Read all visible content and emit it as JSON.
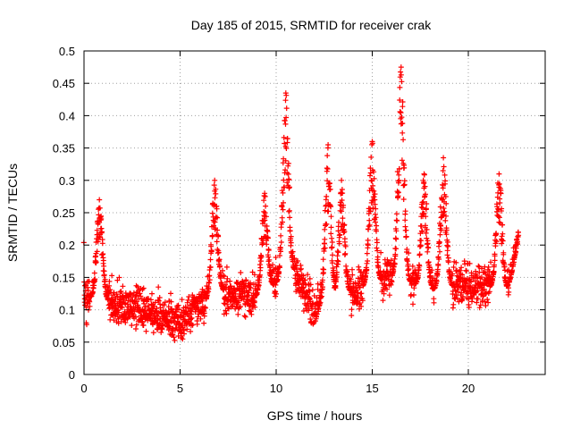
{
  "chart_data": {
    "type": "scatter",
    "title": "Day 185 of 2015, SRMTID for receiver crak",
    "xlabel": "GPS time / hours",
    "ylabel": "SRMTID / TECUs",
    "xlim": [
      0,
      24
    ],
    "ylim": [
      0,
      0.5
    ],
    "xticks": [
      0,
      5,
      10,
      15,
      20
    ],
    "xtick_labels": [
      "0",
      "5",
      "10",
      "15",
      "20"
    ],
    "yticks": [
      0,
      0.05,
      0.1,
      0.15,
      0.2,
      0.25,
      0.3,
      0.35,
      0.4,
      0.45,
      0.5
    ],
    "ytick_labels": [
      "0",
      "0.05",
      "0.1",
      "0.15",
      "0.2",
      "0.25",
      "0.3",
      "0.35",
      "0.4",
      "0.45",
      "0.5"
    ],
    "grid": true,
    "marker": "+",
    "color": "#ff0000",
    "x_range_of_data": [
      0,
      22.6
    ],
    "baseline_profile": [
      {
        "hour": 0,
        "typical": 0.12
      },
      {
        "hour": 2,
        "typical": 0.11
      },
      {
        "hour": 4,
        "typical": 0.09
      },
      {
        "hour": 5,
        "typical": 0.08
      },
      {
        "hour": 7,
        "typical": 0.13
      },
      {
        "hour": 9,
        "typical": 0.12
      },
      {
        "hour": 11,
        "typical": 0.16
      },
      {
        "hour": 12,
        "typical": 0.1
      },
      {
        "hour": 14,
        "typical": 0.13
      },
      {
        "hour": 16,
        "typical": 0.15
      },
      {
        "hour": 18,
        "typical": 0.13
      },
      {
        "hour": 20,
        "typical": 0.14
      },
      {
        "hour": 22,
        "typical": 0.13
      },
      {
        "hour": 22.6,
        "typical": 0.19
      }
    ],
    "peaks": [
      {
        "hour": 0.8,
        "value": 0.27
      },
      {
        "hour": 6.8,
        "value": 0.3
      },
      {
        "hour": 9.4,
        "value": 0.28
      },
      {
        "hour": 10.5,
        "value": 0.435
      },
      {
        "hour": 12.7,
        "value": 0.355
      },
      {
        "hour": 13.4,
        "value": 0.3
      },
      {
        "hour": 15.0,
        "value": 0.36
      },
      {
        "hour": 16.5,
        "value": 0.475
      },
      {
        "hour": 17.7,
        "value": 0.31
      },
      {
        "hour": 18.7,
        "value": 0.335
      },
      {
        "hour": 21.6,
        "value": 0.31
      },
      {
        "hour": 22.6,
        "value": 0.22
      }
    ]
  }
}
